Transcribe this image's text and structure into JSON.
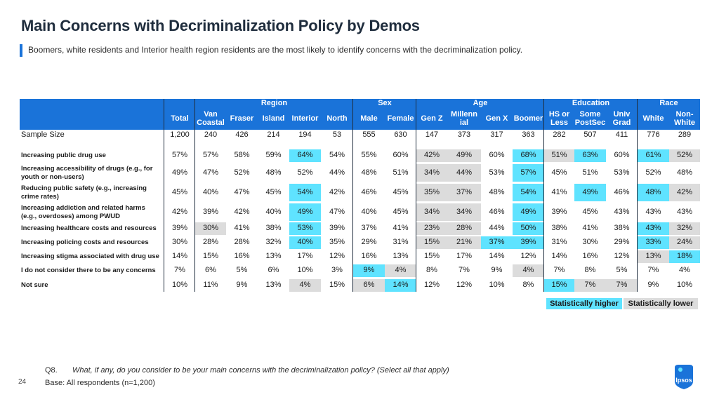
{
  "title": "Main Concerns with Decriminalization Policy by Demos",
  "subtitle": "Boomers, white residents and Interior health region residents are the most likely to identify concerns with the decriminalization policy.",
  "group_headers": [
    {
      "label": "Region",
      "start": 2,
      "span": 5
    },
    {
      "label": "Sex",
      "start": 7,
      "span": 2
    },
    {
      "label": "Age",
      "start": 9,
      "span": 4
    },
    {
      "label": "Education",
      "start": 13,
      "span": 3
    },
    {
      "label": "Race",
      "start": 16,
      "span": 2
    }
  ],
  "chart_data": {
    "type": "table",
    "title": "Main Concerns with Decriminalization Policy by Demos",
    "columns": [
      "Total",
      "Van\nCoastal",
      "Fraser",
      "Island",
      "Interior",
      "North",
      "Male",
      "Female",
      "Gen Z",
      "Millenn\nial",
      "Gen X",
      "Boomer",
      "HS or\nLess",
      "Some\nPostSec",
      "Univ\nGrad",
      "White",
      "Non-\nWhite"
    ],
    "sample": {
      "label": "Sample Size",
      "values": [
        "1,200",
        "240",
        "426",
        "214",
        "194",
        "53",
        "555",
        "630",
        "147",
        "373",
        "317",
        "363",
        "282",
        "507",
        "411",
        "776",
        "289"
      ]
    },
    "rows": [
      {
        "label": "Increasing public drug use",
        "values": [
          "57%",
          "57%",
          "58%",
          "59%",
          "64%",
          "54%",
          "55%",
          "60%",
          "42%",
          "49%",
          "60%",
          "68%",
          "51%",
          "63%",
          "60%",
          "61%",
          "52%"
        ],
        "flags": [
          "",
          "",
          "",
          "",
          "h",
          "",
          "",
          "",
          "l",
          "l",
          "",
          "h",
          "l",
          "h",
          "",
          "h",
          "l"
        ]
      },
      {
        "label": "Increasing accessibility of drugs (e.g., for\n  youth or non-users)",
        "values": [
          "49%",
          "47%",
          "52%",
          "48%",
          "52%",
          "44%",
          "48%",
          "51%",
          "34%",
          "44%",
          "53%",
          "57%",
          "45%",
          "51%",
          "53%",
          "52%",
          "48%"
        ],
        "flags": [
          "",
          "",
          "",
          "",
          "",
          "",
          "",
          "",
          "l",
          "l",
          "",
          "h",
          "",
          "",
          "",
          "",
          ""
        ]
      },
      {
        "label": "Reducing public safety (e.g., increasing\n  crime rates)",
        "values": [
          "45%",
          "40%",
          "47%",
          "45%",
          "54%",
          "42%",
          "46%",
          "45%",
          "35%",
          "37%",
          "48%",
          "54%",
          "41%",
          "49%",
          "46%",
          "48%",
          "42%"
        ],
        "flags": [
          "",
          "",
          "",
          "",
          "h",
          "",
          "",
          "",
          "l",
          "l",
          "",
          "h",
          "",
          "h",
          "",
          "h",
          "l"
        ]
      },
      {
        "label": "Increasing addiction and related harms\n  (e.g., overdoses) among PWUD",
        "values": [
          "42%",
          "39%",
          "42%",
          "40%",
          "49%",
          "47%",
          "40%",
          "45%",
          "34%",
          "34%",
          "46%",
          "49%",
          "39%",
          "45%",
          "43%",
          "43%",
          "43%"
        ],
        "flags": [
          "",
          "",
          "",
          "",
          "h",
          "",
          "",
          "",
          "l",
          "l",
          "",
          "h",
          "",
          "",
          "",
          "",
          ""
        ]
      },
      {
        "label": "Increasing healthcare costs and resources",
        "values": [
          "39%",
          "30%",
          "41%",
          "38%",
          "53%",
          "39%",
          "37%",
          "41%",
          "23%",
          "28%",
          "44%",
          "50%",
          "38%",
          "41%",
          "38%",
          "43%",
          "32%"
        ],
        "flags": [
          "",
          "l",
          "",
          "",
          "h",
          "",
          "",
          "",
          "l",
          "l",
          "",
          "h",
          "",
          "",
          "",
          "h",
          "l"
        ]
      },
      {
        "label": "Increasing policing costs and resources",
        "values": [
          "30%",
          "28%",
          "28%",
          "32%",
          "40%",
          "35%",
          "29%",
          "31%",
          "15%",
          "21%",
          "37%",
          "39%",
          "31%",
          "30%",
          "29%",
          "33%",
          "24%"
        ],
        "flags": [
          "",
          "",
          "",
          "",
          "h",
          "",
          "",
          "",
          "l",
          "l",
          "h",
          "h",
          "",
          "",
          "",
          "h",
          "l"
        ]
      },
      {
        "label": "Increasing stigma associated with drug use",
        "values": [
          "14%",
          "15%",
          "16%",
          "13%",
          "17%",
          "12%",
          "16%",
          "13%",
          "15%",
          "17%",
          "14%",
          "12%",
          "14%",
          "16%",
          "12%",
          "13%",
          "18%"
        ],
        "flags": [
          "",
          "",
          "",
          "",
          "",
          "",
          "",
          "",
          "",
          "",
          "",
          "",
          "",
          "",
          "",
          "l",
          "h"
        ]
      },
      {
        "label": "I do not consider there to be any concerns",
        "values": [
          "7%",
          "6%",
          "5%",
          "6%",
          "10%",
          "3%",
          "9%",
          "4%",
          "8%",
          "7%",
          "9%",
          "4%",
          "7%",
          "8%",
          "5%",
          "7%",
          "4%"
        ],
        "flags": [
          "",
          "",
          "",
          "",
          "",
          "",
          "h",
          "l",
          "",
          "",
          "",
          "l",
          "",
          "",
          "",
          "",
          ""
        ]
      },
      {
        "label": "Not sure",
        "values": [
          "10%",
          "11%",
          "9%",
          "13%",
          "4%",
          "15%",
          "6%",
          "14%",
          "12%",
          "12%",
          "10%",
          "8%",
          "15%",
          "7%",
          "7%",
          "9%",
          "10%"
        ],
        "flags": [
          "",
          "",
          "",
          "",
          "l",
          "",
          "l",
          "h",
          "",
          "",
          "",
          "",
          "h",
          "l",
          "l",
          "",
          ""
        ]
      }
    ]
  },
  "legend": {
    "higher": "Statistically higher",
    "lower": "Statistically lower"
  },
  "colors": {
    "header": "#1a73d9",
    "higher": "#5fe3ff",
    "lower": "#dcdcdc"
  },
  "footer": {
    "qnum": "Q8.",
    "question": "What, if any, do you consider to be your main concerns with the decriminalization policy? (Select all that apply)",
    "base": "Base: All respondents (n=1,200)",
    "page": "24",
    "logo": "Ipsos"
  }
}
